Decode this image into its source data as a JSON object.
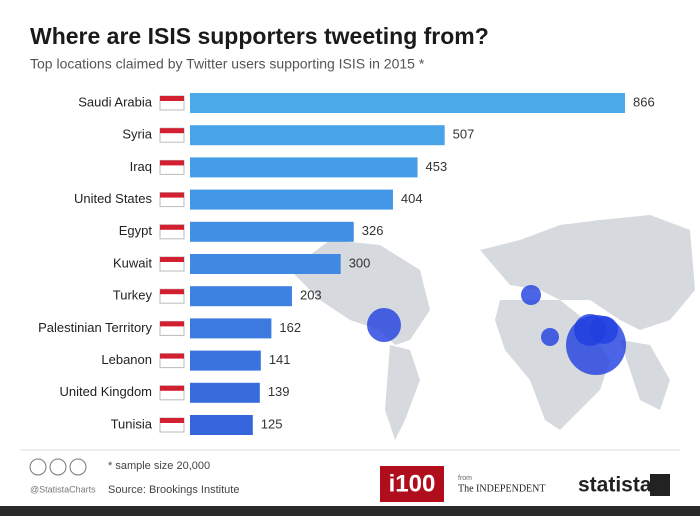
{
  "chart_data": {
    "type": "bar",
    "orientation": "horizontal",
    "title": "Where are ISIS supporters tweeting from?",
    "subtitle": "Top locations claimed by Twitter users supporting ISIS in 2015 *",
    "categories": [
      "Saudi Arabia",
      "Syria",
      "Iraq",
      "United States",
      "Egypt",
      "Kuwait",
      "Turkey",
      "Palestinian Territory",
      "Lebanon",
      "United Kingdom",
      "Tunisia"
    ],
    "values": [
      866,
      507,
      453,
      404,
      326,
      300,
      203,
      162,
      141,
      139,
      125
    ],
    "colors": [
      "#4ba9ea",
      "#48a3e9",
      "#469de7",
      "#4496e6",
      "#4290e4",
      "#4089e3",
      "#3e82e1",
      "#3c7adf",
      "#3a73de",
      "#386cdc",
      "#3665db"
    ],
    "footer": {
      "note": "* sample size 20,000",
      "source": "Source: Brookings Institute",
      "handle": "@StatistaCharts",
      "brand1": "i100",
      "from": "from",
      "brand2": "The INDEPENDENT",
      "brand3": "statista"
    }
  }
}
